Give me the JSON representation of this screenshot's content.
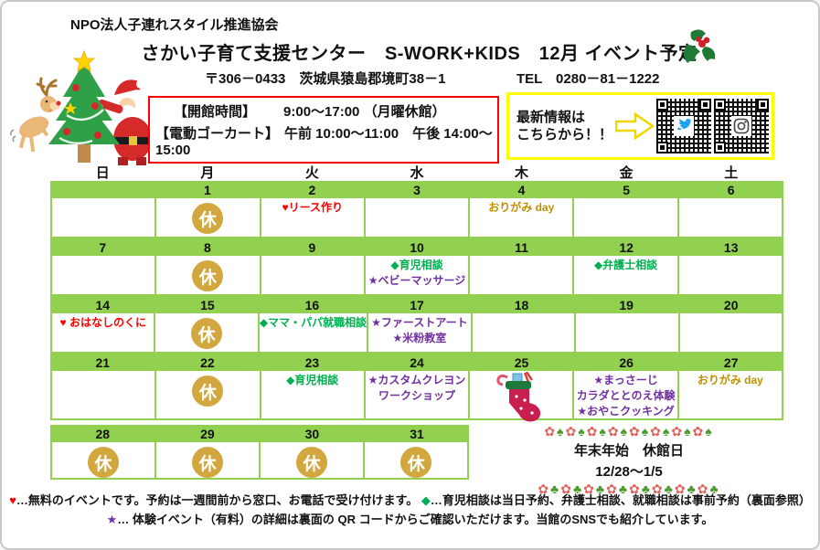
{
  "header": {
    "org": "NPO法人子連れスタイル推進協会",
    "title": "さかい子育て支援センター　S-WORK+KIDS　12月 イベント予定",
    "address": "〒306－0433　茨城県猿島郡境町38－1",
    "tel": "TEL　0280－81－1222"
  },
  "info_box": {
    "hours_label": "【開館時間】",
    "hours_value": "9:00～17:00 （月曜休館）",
    "gokart_label": "【電動ゴーカート】",
    "gokart_value": "午前 10:00～11:00　午後 14:00～15:00"
  },
  "sns_box": {
    "line1": "最新情報は",
    "line2": "こちらから！！"
  },
  "colors": {
    "red": "#ff0000",
    "green": "#00b050",
    "purple": "#7030a0",
    "gold": "#bf9000",
    "grid_green": "#92d050",
    "badge_gold": "#d2a73e",
    "box_red": "#ff0000",
    "box_yellow": "#ffff00"
  },
  "calendar": {
    "weekday_headers": [
      "日",
      "月",
      "火",
      "水",
      "木",
      "金",
      "土"
    ],
    "closed_label": "休",
    "weeks": [
      {
        "days": [
          {
            "date": ""
          },
          {
            "date": "1",
            "closed": true
          },
          {
            "date": "2",
            "events": [
              {
                "text": "♥リース作り",
                "color": "red"
              }
            ]
          },
          {
            "date": "3"
          },
          {
            "date": "4",
            "events": [
              {
                "text": "おりがみ day",
                "color": "gold"
              }
            ]
          },
          {
            "date": "5"
          },
          {
            "date": "6"
          }
        ]
      },
      {
        "days": [
          {
            "date": "7"
          },
          {
            "date": "8",
            "closed": true
          },
          {
            "date": "9"
          },
          {
            "date": "10",
            "events": [
              {
                "text": "◆育児相談",
                "color": "green"
              },
              {
                "text": "★ベビーマッサージ",
                "color": "purple"
              }
            ]
          },
          {
            "date": "11"
          },
          {
            "date": "12",
            "events": [
              {
                "text": "◆弁護士相談",
                "color": "green"
              }
            ]
          },
          {
            "date": "13"
          }
        ]
      },
      {
        "days": [
          {
            "date": "14",
            "events": [
              {
                "text": "♥ おはなしのくに",
                "color": "red"
              }
            ]
          },
          {
            "date": "15",
            "closed": true
          },
          {
            "date": "16",
            "events": [
              {
                "text": "◆ママ・パパ就職相談",
                "color": "green"
              }
            ]
          },
          {
            "date": "17",
            "events": [
              {
                "text": "★ファーストアート",
                "color": "purple"
              },
              {
                "text": "★米粉教室",
                "color": "purple"
              }
            ]
          },
          {
            "date": "18"
          },
          {
            "date": "19"
          },
          {
            "date": "20"
          }
        ]
      },
      {
        "days": [
          {
            "date": "21"
          },
          {
            "date": "22",
            "closed": true
          },
          {
            "date": "23",
            "events": [
              {
                "text": "◆育児相談",
                "color": "green"
              }
            ]
          },
          {
            "date": "24",
            "events": [
              {
                "text": "★カスタムクレヨン",
                "color": "purple"
              },
              {
                "text": "ワークショップ",
                "color": "purple"
              }
            ]
          },
          {
            "date": "25",
            "stocking": true
          },
          {
            "date": "26",
            "events": [
              {
                "text": "★まっさーじ",
                "color": "purple"
              },
              {
                "text": "カラダととのえ体験",
                "color": "purple"
              },
              {
                "text": "★おやこクッキング",
                "color": "purple"
              }
            ]
          },
          {
            "date": "27",
            "events": [
              {
                "text": "おりがみ day",
                "color": "gold"
              }
            ]
          }
        ]
      },
      {
        "days": [
          {
            "date": "28",
            "closed": true
          },
          {
            "date": "29",
            "closed": true
          },
          {
            "date": "30",
            "closed": true
          },
          {
            "date": "31",
            "closed": true
          }
        ]
      }
    ]
  },
  "year_end": {
    "line1": "年末年始　休館日",
    "line2": "12/28～1/5"
  },
  "deco_glyphs": {
    "flower": {
      "char": "✿",
      "color": "#e0635c"
    },
    "bamboo": {
      "char": "♠",
      "color": "#4e9a2e"
    },
    "pine": {
      "char": "♣",
      "color": "#4e9a2e"
    }
  },
  "deco_rows": [
    {
      "pattern": [
        "flower",
        "bamboo"
      ],
      "repeat": 8
    },
    {
      "pattern": [
        "flower",
        "pine"
      ],
      "repeat": 8
    }
  ],
  "notes": {
    "line1": [
      {
        "text": "♥",
        "color": "#ff0000"
      },
      {
        "text": "…無料のイベントです。予約は一週間前から窓口、お電話で受け付けます。 ",
        "color": "#111111"
      },
      {
        "text": "◆",
        "color": "#00b050"
      },
      {
        "text": "…育児相談は当日予約、弁護士相談、就職相談は事前予約（裏面参照）",
        "color": "#111111"
      }
    ],
    "line2": [
      {
        "text": "★",
        "color": "#7030a0"
      },
      {
        "text": "… 体験イベント（有料）の詳細は裏面の QR コードからご確認いただけます。当館のSNSでも紹介しています。",
        "color": "#111111"
      }
    ]
  }
}
